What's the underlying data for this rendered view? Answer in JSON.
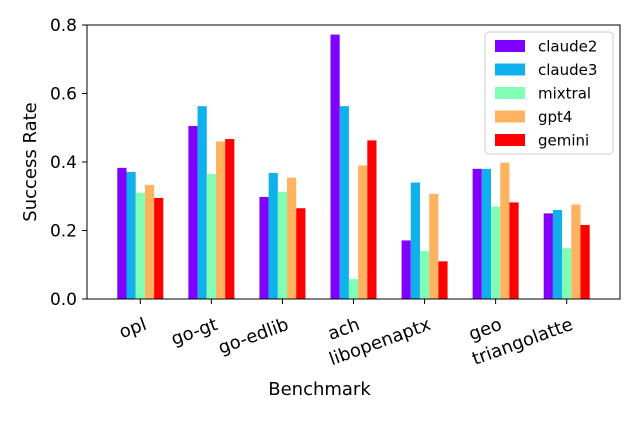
{
  "chart_data": {
    "type": "bar",
    "xlabel": "Benchmark",
    "ylabel": "Success Rate",
    "ylim": [
      0,
      0.8
    ],
    "yticks": [
      0.0,
      0.2,
      0.4,
      0.6,
      0.8
    ],
    "ytick_labels": [
      "0.0",
      "0.2",
      "0.4",
      "0.6",
      "0.8"
    ],
    "categories": [
      "opl",
      "go-gt",
      "go-edlib",
      "ach",
      "libopenaptx",
      "geo",
      "triangolatte"
    ],
    "series": [
      {
        "name": "claude2",
        "color": "#8000ff",
        "values": [
          0.383,
          0.505,
          0.298,
          0.772,
          0.171,
          0.38,
          0.25
        ]
      },
      {
        "name": "claude3",
        "color": "#0fb0eb",
        "values": [
          0.371,
          0.563,
          0.368,
          0.563,
          0.34,
          0.38,
          0.26
        ]
      },
      {
        "name": "mixtral",
        "color": "#80ffb4",
        "values": [
          0.31,
          0.365,
          0.313,
          0.058,
          0.14,
          0.27,
          0.148
        ]
      },
      {
        "name": "gpt4",
        "color": "#ffb360",
        "values": [
          0.333,
          0.46,
          0.354,
          0.39,
          0.307,
          0.398,
          0.276
        ]
      },
      {
        "name": "gemini",
        "color": "#ff0000",
        "values": [
          0.295,
          0.467,
          0.265,
          0.463,
          0.11,
          0.282,
          0.216
        ]
      }
    ],
    "legend_position": "top-right",
    "grid": false
  }
}
